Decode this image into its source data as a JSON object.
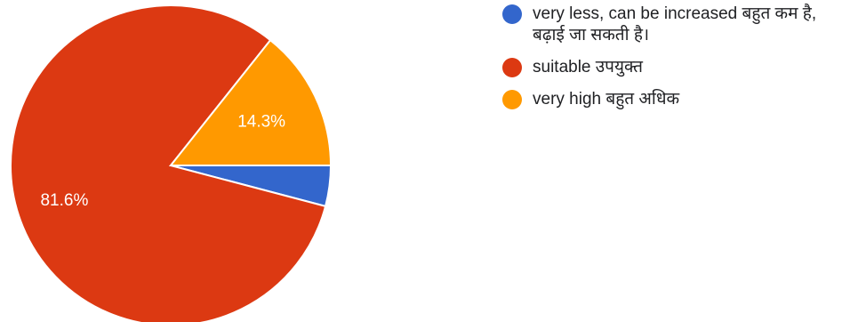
{
  "chart_data": {
    "type": "pie",
    "slices": [
      {
        "name": "very less, can be increased बहुत कम है, बढ़ाई जा सकती है।",
        "value": 4.1,
        "color": "#3366cc",
        "label": ""
      },
      {
        "name": "suitable उपयुक्त",
        "value": 81.6,
        "color": "#dc3912",
        "label": "81.6%"
      },
      {
        "name": "very high बहुत अधिक",
        "value": 14.3,
        "color": "#ff9900",
        "label": "14.3%"
      }
    ],
    "legend_position": "top-right"
  }
}
